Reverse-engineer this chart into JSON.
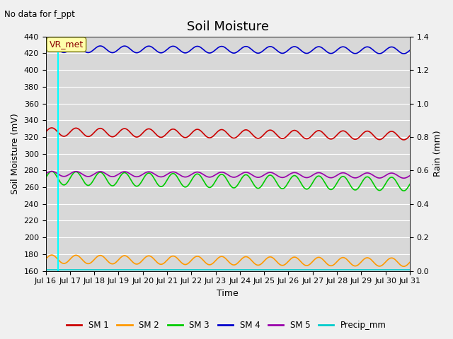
{
  "title": "Soil Moisture",
  "annotation_topleft": "No data for f_ppt",
  "ylabel_left": "Soil Moisture (mV)",
  "ylabel_right": "Rain (mm)",
  "xlabel": "Time",
  "ylim_left": [
    160,
    440
  ],
  "ylim_right": [
    0.0,
    1.4
  ],
  "xlim": [
    0,
    15
  ],
  "fig_bg_color": "#f0f0f0",
  "plot_bg_color": "#d8d8d8",
  "vr_met_label": "VR_met",
  "vr_met_box_color": "#ffffaa",
  "vr_met_text_color": "#8b0000",
  "cyan_line_x": 0.5,
  "series": {
    "SM1": {
      "color": "#cc0000",
      "base": 326,
      "amplitude": 5,
      "period": 1.0,
      "trend": -0.3
    },
    "SM2": {
      "color": "#ff9900",
      "base": 174,
      "amplitude": 5,
      "period": 1.0,
      "trend": -0.25
    },
    "SM3": {
      "color": "#00cc00",
      "base": 271,
      "amplitude": 8,
      "period": 1.0,
      "trend": -0.5
    },
    "SM4": {
      "color": "#0000cc",
      "base": 425,
      "amplitude": 4,
      "period": 1.0,
      "trend": -0.1
    },
    "SM5": {
      "color": "#9900aa",
      "base": 276,
      "amplitude": 3,
      "period": 1.0,
      "trend": -0.15
    },
    "Precip_mm": {
      "color": "#00cccc",
      "base": 161,
      "amplitude": 0,
      "period": 1.0,
      "trend": 0
    }
  },
  "legend_items": [
    "SM 1",
    "SM 2",
    "SM 3",
    "SM 4",
    "SM 5",
    "Precip_mm"
  ],
  "legend_colors": [
    "#cc0000",
    "#ff9900",
    "#00cc00",
    "#0000cc",
    "#9900aa",
    "#00cccc"
  ],
  "xtick_labels": [
    "Jul 16",
    "Jul 17",
    "Jul 18",
    "Jul 19",
    "Jul 20",
    "Jul 21",
    "Jul 22",
    "Jul 23",
    "Jul 24",
    "Jul 25",
    "Jul 26",
    "Jul 27",
    "Jul 28",
    "Jul 29",
    "Jul 30",
    "Jul 31"
  ],
  "ytick_left": [
    160,
    180,
    200,
    220,
    240,
    260,
    280,
    300,
    320,
    340,
    360,
    380,
    400,
    420,
    440
  ],
  "ytick_right": [
    0.0,
    0.2,
    0.4,
    0.6,
    0.8,
    1.0,
    1.2,
    1.4
  ],
  "grid_color": "#ffffff",
  "title_fontsize": 13,
  "axis_fontsize": 9,
  "tick_fontsize": 8
}
